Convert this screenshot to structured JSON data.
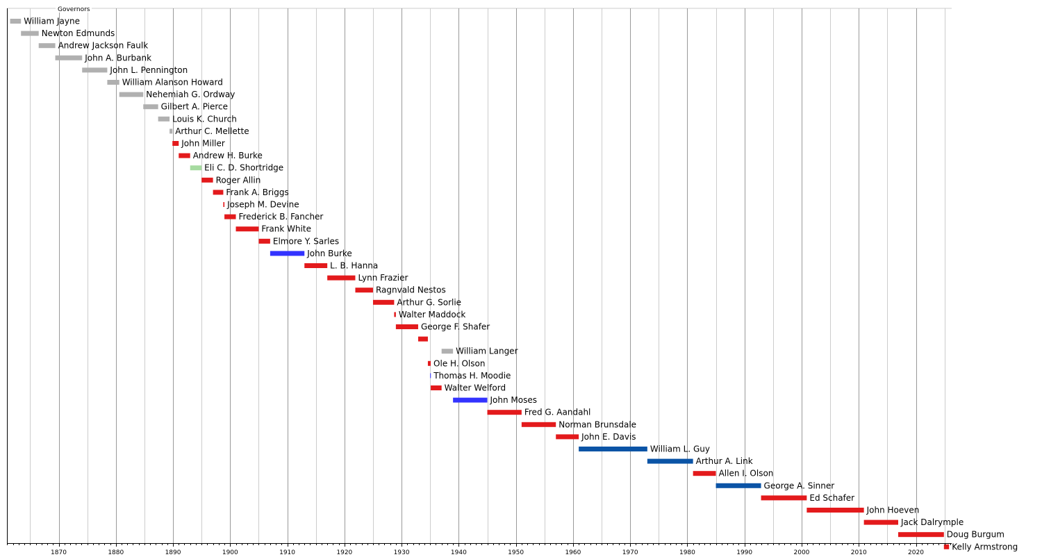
{
  "chart_data": {
    "type": "timeline",
    "title": "Governors",
    "xlim": [
      1861,
      2026.5
    ],
    "x_ticks": [
      1870,
      1880,
      1890,
      1900,
      1910,
      1920,
      1930,
      1940,
      1950,
      1960,
      1970,
      1980,
      1990,
      2000,
      2010,
      2020
    ],
    "grid": true,
    "colors": {
      "none": "#b0b0b0",
      "republican": "#e31a1c",
      "independent": "#a6dba0",
      "democratic": "#3333ff",
      "dem_npl": "#0b54a6"
    },
    "series": [
      {
        "name": "William Jayne",
        "start": 1861.5,
        "end": 1863.4,
        "party": "none"
      },
      {
        "name": "Newton Edmunds",
        "start": 1863.4,
        "end": 1866.5,
        "party": "none"
      },
      {
        "name": "Andrew Jackson Faulk",
        "start": 1866.5,
        "end": 1869.4,
        "party": "none"
      },
      {
        "name": "John A. Burbank",
        "start": 1869.4,
        "end": 1874.1,
        "party": "none"
      },
      {
        "name": "John L. Pennington",
        "start": 1874.1,
        "end": 1878.5,
        "party": "none"
      },
      {
        "name": "William Alanson Howard",
        "start": 1878.5,
        "end": 1880.6,
        "party": "none"
      },
      {
        "name": "Nehemiah G. Ordway",
        "start": 1880.6,
        "end": 1884.8,
        "party": "none"
      },
      {
        "name": "Gilbert A. Pierce",
        "start": 1884.8,
        "end": 1887.4,
        "party": "none"
      },
      {
        "name": "Louis K. Church",
        "start": 1887.4,
        "end": 1889.4,
        "party": "none"
      },
      {
        "name": "Arthur C. Mellette",
        "start": 1889.4,
        "end": 1889.9,
        "party": "none"
      },
      {
        "name": "John Miller",
        "start": 1889.9,
        "end": 1891.0,
        "party": "republican"
      },
      {
        "name": "Andrew H. Burke",
        "start": 1891.0,
        "end": 1893.0,
        "party": "republican"
      },
      {
        "name": "Eli C. D. Shortridge",
        "start": 1893.0,
        "end": 1895.0,
        "party": "independent"
      },
      {
        "name": "Roger Allin",
        "start": 1895.0,
        "end": 1897.0,
        "party": "republican"
      },
      {
        "name": "Frank A. Briggs",
        "start": 1897.0,
        "end": 1898.8,
        "party": "republican"
      },
      {
        "name": "Joseph M. Devine",
        "start": 1898.8,
        "end": 1899.0,
        "party": "republican"
      },
      {
        "name": "Frederick B. Fancher",
        "start": 1899.0,
        "end": 1901.0,
        "party": "republican"
      },
      {
        "name": "Frank White",
        "start": 1901.0,
        "end": 1905.0,
        "party": "republican"
      },
      {
        "name": "Elmore Y. Sarles",
        "start": 1905.0,
        "end": 1907.0,
        "party": "republican"
      },
      {
        "name": "John Burke",
        "start": 1907.0,
        "end": 1913.0,
        "party": "democratic"
      },
      {
        "name": "L. B. Hanna",
        "start": 1913.0,
        "end": 1917.0,
        "party": "republican"
      },
      {
        "name": "Lynn Frazier",
        "start": 1917.0,
        "end": 1921.9,
        "party": "republican"
      },
      {
        "name": "Ragnvald Nestos",
        "start": 1921.9,
        "end": 1925.0,
        "party": "republican"
      },
      {
        "name": "Arthur G. Sorlie",
        "start": 1925.0,
        "end": 1928.7,
        "party": "republican"
      },
      {
        "name": "Walter Maddock",
        "start": 1928.7,
        "end": 1929.0,
        "party": "republican"
      },
      {
        "name": "George F. Shafer",
        "start": 1929.0,
        "end": 1932.9,
        "party": "republican"
      },
      {
        "name": "",
        "start": 1932.9,
        "end": 1934.6,
        "party": "republican"
      },
      {
        "name": "William Langer",
        "start": 1937.0,
        "end": 1939.0,
        "party": "none"
      },
      {
        "name": "Ole H. Olson",
        "start": 1934.6,
        "end": 1935.1,
        "party": "republican"
      },
      {
        "name": "Thomas H. Moodie",
        "start": 1935.0,
        "end": 1935.1,
        "party": "democratic"
      },
      {
        "name": "Walter Welford",
        "start": 1935.1,
        "end": 1937.0,
        "party": "republican"
      },
      {
        "name": "John Moses",
        "start": 1939.0,
        "end": 1945.0,
        "party": "democratic"
      },
      {
        "name": "Fred G. Aandahl",
        "start": 1945.0,
        "end": 1951.0,
        "party": "republican"
      },
      {
        "name": "Norman Brunsdale",
        "start": 1951.0,
        "end": 1957.0,
        "party": "republican"
      },
      {
        "name": "John E. Davis",
        "start": 1957.0,
        "end": 1961.0,
        "party": "republican"
      },
      {
        "name": "William L. Guy",
        "start": 1961.0,
        "end": 1973.0,
        "party": "dem_npl"
      },
      {
        "name": "Arthur A. Link",
        "start": 1973.0,
        "end": 1981.0,
        "party": "dem_npl"
      },
      {
        "name": "Allen I. Olson",
        "start": 1981.0,
        "end": 1985.0,
        "party": "republican"
      },
      {
        "name": "George A. Sinner",
        "start": 1985.0,
        "end": 1992.9,
        "party": "dem_npl"
      },
      {
        "name": "Ed Schafer",
        "start": 1992.9,
        "end": 2000.9,
        "party": "republican"
      },
      {
        "name": "John Hoeven",
        "start": 2000.9,
        "end": 2010.9,
        "party": "republican"
      },
      {
        "name": "Jack Dalrymple",
        "start": 2010.9,
        "end": 2016.9,
        "party": "republican"
      },
      {
        "name": "Doug Burgum",
        "start": 2016.9,
        "end": 2024.9,
        "party": "republican"
      },
      {
        "name": "Kelly Armstrong",
        "start": 2024.9,
        "end": 2025.8,
        "party": "republican"
      }
    ]
  }
}
